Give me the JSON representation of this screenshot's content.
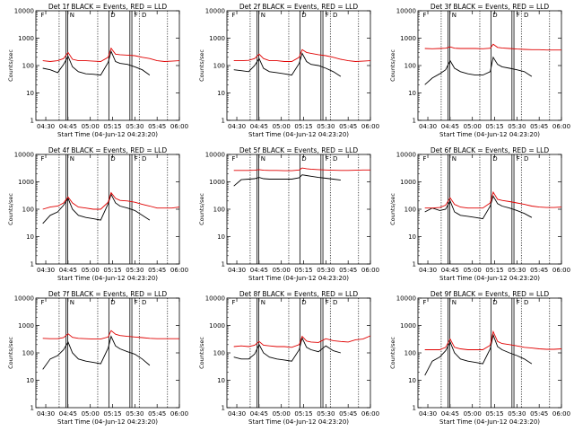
{
  "figure": {
    "ylabel": "Counts/sec",
    "xlabel": "Start Time (04-Jun-12 04:23:20)",
    "time_ticks": [
      "04:30",
      "04:45",
      "05:00",
      "05:15",
      "05:30",
      "05:45",
      "06:00"
    ],
    "y_ticks": [
      "1",
      "10",
      "100",
      "1000",
      "10000"
    ],
    "colors": {
      "events": "#000000",
      "lld": "#e00000",
      "axes": "#000000"
    }
  },
  "chart_data": [
    {
      "type": "line",
      "title": "Det 1f BLACK = Events, RED = LLD",
      "xlabel": "Start Time (04-Jun-12 04:23:20)",
      "ylabel": "Counts/sec",
      "yscale": "log",
      "xlim": [
        "04:23:20",
        "06:00"
      ],
      "ylim": [
        1,
        10000
      ],
      "x": [
        "04:28",
        "04:33",
        "04:38",
        "04:42",
        "04:45",
        "04:48",
        "04:52",
        "04:57",
        "05:02",
        "05:07",
        "05:12",
        "05:14",
        "05:17",
        "05:20",
        "05:25",
        "05:30",
        "05:35",
        "05:40",
        "05:45",
        "05:50",
        "05:55",
        "06:00"
      ],
      "series": [
        {
          "name": "Events",
          "values": [
            80,
            70,
            55,
            110,
            220,
            90,
            60,
            50,
            48,
            45,
            130,
            330,
            140,
            120,
            110,
            90,
            70,
            45,
            null,
            null,
            null,
            null
          ]
        },
        {
          "name": "LLD",
          "values": [
            150,
            140,
            150,
            180,
            300,
            170,
            150,
            150,
            145,
            140,
            200,
            430,
            260,
            250,
            240,
            230,
            200,
            180,
            150,
            140,
            145,
            150
          ]
        }
      ],
      "event_lines": [],
      "dotted_lines": [],
      "corner_labels": [
        "F",
        "N",
        "D",
        "F",
        "D"
      ]
    },
    {
      "type": "line",
      "title": "Det 2f BLACK = Events, RED = LLD",
      "xlabel": "Start Time (04-Jun-12 04:23:20)",
      "ylabel": "Counts/sec",
      "yscale": "log",
      "xlim": [
        "04:23:20",
        "06:00"
      ],
      "ylim": [
        1,
        10000
      ],
      "x": [
        "04:28",
        "04:33",
        "04:38",
        "04:42",
        "04:45",
        "04:48",
        "04:52",
        "04:57",
        "05:02",
        "05:07",
        "05:12",
        "05:14",
        "05:17",
        "05:20",
        "05:25",
        "05:30",
        "05:35",
        "05:40",
        "05:45",
        "05:50",
        "05:55",
        "06:00"
      ],
      "series": [
        {
          "name": "Events",
          "values": [
            70,
            65,
            60,
            100,
            180,
            80,
            60,
            55,
            50,
            45,
            120,
            280,
            140,
            110,
            100,
            80,
            60,
            40,
            null,
            null,
            null,
            null
          ]
        },
        {
          "name": "LLD",
          "values": [
            150,
            150,
            155,
            180,
            260,
            180,
            150,
            150,
            140,
            140,
            200,
            380,
            300,
            280,
            250,
            230,
            200,
            170,
            150,
            140,
            145,
            150
          ]
        }
      ],
      "event_lines": [],
      "dotted_lines": [],
      "corner_labels": [
        "F",
        "N",
        "D",
        "F",
        "D"
      ]
    },
    {
      "type": "line",
      "title": "Det 3f BLACK = Events, RED = LLD",
      "xlabel": "Start Time (04-Jun-12 04:23:20)",
      "ylabel": "Counts/sec",
      "yscale": "log",
      "xlim": [
        "04:23:20",
        "06:00"
      ],
      "ylim": [
        1,
        10000
      ],
      "x": [
        "04:28",
        "04:33",
        "04:38",
        "04:42",
        "04:45",
        "04:48",
        "04:52",
        "04:57",
        "05:02",
        "05:07",
        "05:12",
        "05:14",
        "05:17",
        "05:20",
        "05:25",
        "05:30",
        "05:35",
        "05:40",
        "05:45",
        "05:50",
        "05:55",
        "06:00"
      ],
      "series": [
        {
          "name": "Events",
          "values": [
            20,
            35,
            50,
            70,
            150,
            80,
            60,
            50,
            45,
            45,
            60,
            200,
            110,
            90,
            80,
            70,
            60,
            40,
            null,
            null,
            null,
            null
          ]
        },
        {
          "name": "LLD",
          "values": [
            420,
            410,
            420,
            430,
            480,
            430,
            420,
            420,
            420,
            410,
            430,
            600,
            460,
            440,
            420,
            400,
            390,
            380,
            380,
            370,
            370,
            370
          ]
        }
      ],
      "event_lines": [],
      "dotted_lines": [],
      "corner_labels": [
        "F",
        "N",
        "D",
        "F",
        "D"
      ]
    },
    {
      "type": "line",
      "title": "Det 4f BLACK = Events, RED = LLD",
      "xlabel": "Start Time (04-Jun-12 04:23:20)",
      "ylabel": "Counts/sec",
      "yscale": "log",
      "xlim": [
        "04:23:20",
        "06:00"
      ],
      "ylim": [
        1,
        10000
      ],
      "x": [
        "04:28",
        "04:33",
        "04:38",
        "04:42",
        "04:45",
        "04:48",
        "04:52",
        "04:57",
        "05:02",
        "05:07",
        "05:12",
        "05:14",
        "05:17",
        "05:20",
        "05:25",
        "05:30",
        "05:35",
        "05:40",
        "05:45",
        "05:50",
        "05:55",
        "06:00"
      ],
      "series": [
        {
          "name": "Events",
          "values": [
            30,
            60,
            80,
            140,
            250,
            100,
            60,
            50,
            45,
            40,
            160,
            350,
            170,
            130,
            110,
            90,
            60,
            40,
            null,
            null,
            null,
            null
          ]
        },
        {
          "name": "LLD",
          "values": [
            100,
            120,
            130,
            170,
            280,
            170,
            120,
            110,
            100,
            100,
            180,
            400,
            250,
            210,
            200,
            180,
            150,
            130,
            110,
            110,
            110,
            120
          ]
        }
      ],
      "event_lines": [],
      "dotted_lines": [],
      "corner_labels": [
        "F",
        "N",
        "D",
        "F",
        "D"
      ]
    },
    {
      "type": "line",
      "title": "Det 5f BLACK = Events, RED = LLD",
      "xlabel": "Start Time (04-Jun-12 04:23:20)",
      "ylabel": "Counts/sec",
      "yscale": "log",
      "xlim": [
        "04:23:20",
        "06:00"
      ],
      "ylim": [
        1,
        10000
      ],
      "x": [
        "04:28",
        "04:33",
        "04:38",
        "04:42",
        "04:45",
        "04:48",
        "04:52",
        "04:57",
        "05:02",
        "05:07",
        "05:12",
        "05:14",
        "05:17",
        "05:20",
        "05:25",
        "05:30",
        "05:35",
        "05:40",
        "05:45",
        "05:50",
        "05:55",
        "06:00"
      ],
      "series": [
        {
          "name": "Events",
          "values": [
            700,
            1200,
            1250,
            1300,
            1450,
            1300,
            1250,
            1250,
            1250,
            1250,
            1400,
            1800,
            1700,
            1600,
            1450,
            1350,
            1250,
            1150,
            null,
            null,
            null,
            null
          ]
        },
        {
          "name": "LLD",
          "values": [
            2600,
            2600,
            2600,
            2650,
            2800,
            2650,
            2600,
            2600,
            2550,
            2550,
            2700,
            3200,
            3000,
            2900,
            2800,
            2700,
            2650,
            2600,
            2600,
            2650,
            2700,
            2700
          ]
        }
      ],
      "event_lines": [],
      "dotted_lines": [],
      "corner_labels": [
        "F",
        "N",
        "D",
        "F",
        "D"
      ]
    },
    {
      "type": "line",
      "title": "Det 6f BLACK = Events, RED = LLD",
      "xlabel": "Start Time (04-Jun-12 04:23:20)",
      "ylabel": "Counts/sec",
      "yscale": "log",
      "xlim": [
        "04:23:20",
        "06:00"
      ],
      "ylim": [
        1,
        10000
      ],
      "x": [
        "04:28",
        "04:33",
        "04:38",
        "04:42",
        "04:45",
        "04:48",
        "04:52",
        "04:57",
        "05:02",
        "05:07",
        "05:12",
        "05:14",
        "05:17",
        "05:20",
        "05:25",
        "05:30",
        "05:35",
        "05:40",
        "05:45",
        "05:50",
        "05:55",
        "06:00"
      ],
      "series": [
        {
          "name": "Events",
          "values": [
            80,
            110,
            90,
            100,
            200,
            80,
            60,
            55,
            50,
            45,
            130,
            300,
            160,
            130,
            110,
            90,
            70,
            50,
            null,
            null,
            null,
            null
          ]
        },
        {
          "name": "LLD",
          "values": [
            110,
            110,
            115,
            140,
            260,
            150,
            120,
            110,
            110,
            110,
            170,
            420,
            230,
            210,
            190,
            170,
            150,
            130,
            120,
            115,
            115,
            120
          ]
        }
      ],
      "event_lines": [],
      "dotted_lines": [],
      "corner_labels": [
        "F",
        "N",
        "D",
        "F",
        "D"
      ]
    },
    {
      "type": "line",
      "title": "Det 7f BLACK = Events, RED = LLD",
      "xlabel": "Start Time (04-Jun-12 04:23:20)",
      "ylabel": "Counts/sec",
      "yscale": "log",
      "xlim": [
        "04:23:20",
        "06:00"
      ],
      "ylim": [
        1,
        10000
      ],
      "x": [
        "04:28",
        "04:33",
        "04:38",
        "04:42",
        "04:45",
        "04:48",
        "04:52",
        "04:57",
        "05:02",
        "05:07",
        "05:12",
        "05:14",
        "05:17",
        "05:20",
        "05:25",
        "05:30",
        "05:35",
        "05:40",
        "05:45",
        "05:50",
        "05:55",
        "06:00"
      ],
      "series": [
        {
          "name": "Events",
          "values": [
            25,
            60,
            80,
            130,
            250,
            100,
            60,
            50,
            45,
            40,
            150,
            400,
            180,
            140,
            110,
            90,
            60,
            35,
            null,
            null,
            null,
            null
          ]
        },
        {
          "name": "LLD",
          "values": [
            340,
            330,
            330,
            360,
            500,
            370,
            340,
            330,
            320,
            320,
            380,
            650,
            480,
            430,
            400,
            380,
            360,
            340,
            330,
            330,
            330,
            330
          ]
        }
      ],
      "event_lines": [],
      "dotted_lines": [],
      "corner_labels": [
        "F",
        "N",
        "D",
        "F",
        "D"
      ]
    },
    {
      "type": "line",
      "title": "Det 8f BLACK = Events, RED = LLD",
      "xlabel": "Start Time (04-Jun-12 04:23:20)",
      "ylabel": "Counts/sec",
      "yscale": "log",
      "xlim": [
        "04:23:20",
        "06:00"
      ],
      "ylim": [
        1,
        10000
      ],
      "x": [
        "04:28",
        "04:33",
        "04:38",
        "04:42",
        "04:45",
        "04:48",
        "04:52",
        "04:57",
        "05:02",
        "05:07",
        "05:12",
        "05:14",
        "05:17",
        "05:20",
        "05:25",
        "05:30",
        "05:35",
        "05:40",
        "05:45",
        "05:50",
        "05:55",
        "06:00"
      ],
      "series": [
        {
          "name": "Events",
          "values": [
            70,
            60,
            60,
            90,
            200,
            100,
            70,
            60,
            55,
            50,
            130,
            350,
            160,
            130,
            110,
            180,
            120,
            100,
            null,
            null,
            null,
            null
          ]
        },
        {
          "name": "LLD",
          "values": [
            170,
            180,
            170,
            190,
            260,
            190,
            180,
            170,
            170,
            160,
            200,
            400,
            270,
            250,
            240,
            330,
            280,
            260,
            250,
            300,
            320,
            420
          ]
        }
      ],
      "event_lines": [],
      "dotted_lines": [],
      "corner_labels": [
        "F",
        "N",
        "D",
        "F",
        "D"
      ]
    },
    {
      "type": "line",
      "title": "Det 9f BLACK = Events, RED = LLD",
      "xlabel": "Start Time (04-Jun-12 04:23:20)",
      "ylabel": "Counts/sec",
      "yscale": "log",
      "xlim": [
        "04:23:20",
        "06:00"
      ],
      "ylim": [
        1,
        10000
      ],
      "x": [
        "04:28",
        "04:33",
        "04:38",
        "04:42",
        "04:45",
        "04:48",
        "04:52",
        "04:57",
        "05:02",
        "05:07",
        "05:12",
        "05:14",
        "05:17",
        "05:20",
        "05:25",
        "05:30",
        "05:35",
        "05:40",
        "05:45",
        "05:50",
        "05:55",
        "06:00"
      ],
      "series": [
        {
          "name": "Events",
          "values": [
            15,
            50,
            70,
            120,
            250,
            100,
            60,
            50,
            45,
            40,
            140,
            450,
            170,
            130,
            100,
            80,
            60,
            40,
            null,
            null,
            null,
            null
          ]
        },
        {
          "name": "LLD",
          "values": [
            130,
            130,
            130,
            160,
            320,
            160,
            140,
            130,
            130,
            130,
            190,
            600,
            260,
            220,
            200,
            180,
            160,
            150,
            140,
            135,
            135,
            140
          ]
        }
      ],
      "event_lines": [],
      "dotted_lines": [],
      "corner_labels": [
        "F",
        "N",
        "D",
        "F",
        "D"
      ]
    }
  ]
}
